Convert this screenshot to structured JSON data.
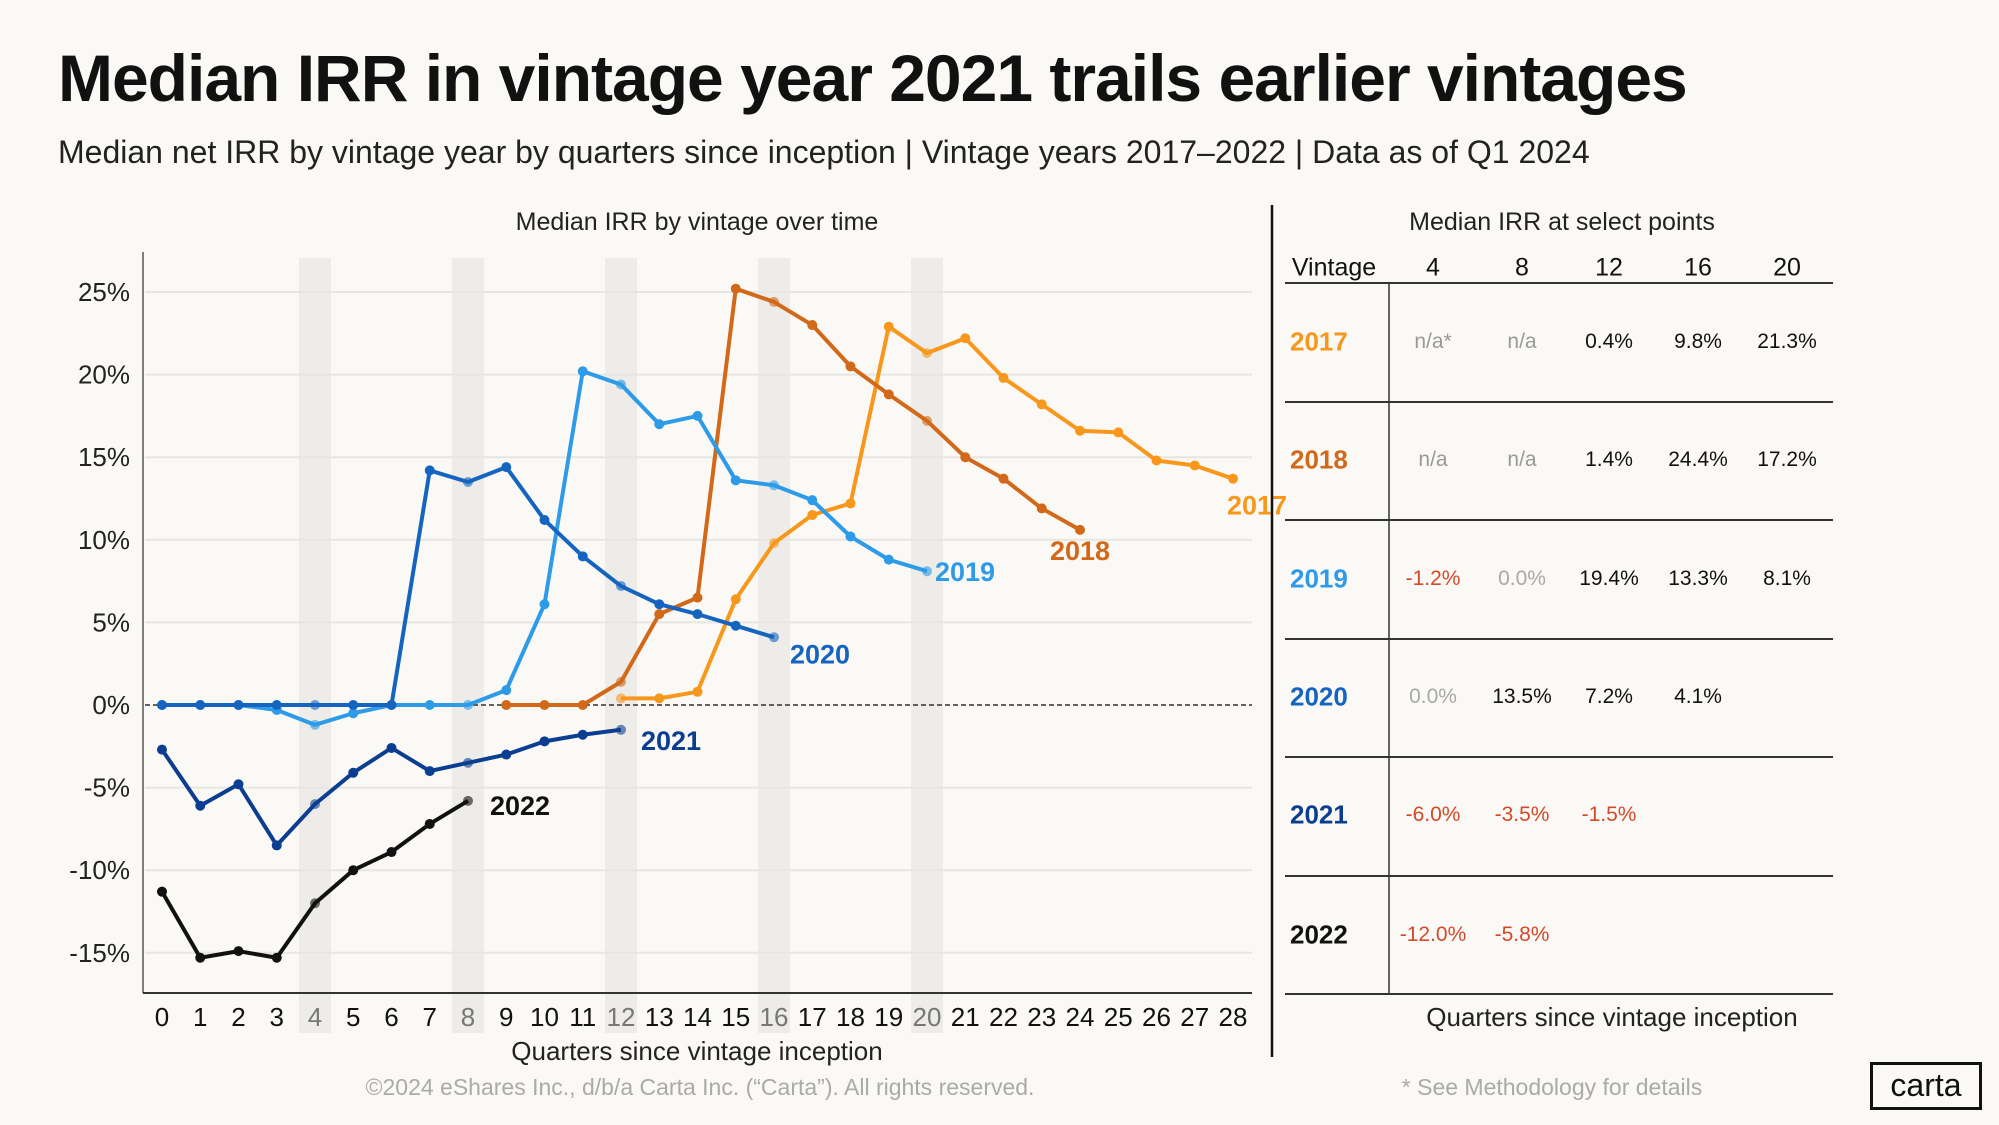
{
  "header": {
    "title": "Median IRR in vintage year 2021 trails earlier vintages",
    "subtitle": "Median net IRR by vintage year by quarters since inception  |  Vintage years 2017–2022  |  Data as of Q1 2024"
  },
  "chart_data": {
    "type": "line",
    "title": "Median IRR by vintage over time",
    "xlabel": "Quarters since vintage inception",
    "ylabel": "",
    "xlim": [
      0,
      28
    ],
    "ylim": [
      -17.5,
      27.5
    ],
    "x_ticks": [
      "0",
      "1",
      "2",
      "3",
      "4",
      "5",
      "6",
      "7",
      "8",
      "9",
      "10",
      "11",
      "12",
      "13",
      "14",
      "15",
      "16",
      "17",
      "18",
      "19",
      "20",
      "21",
      "22",
      "23",
      "24",
      "25",
      "26",
      "27",
      "28"
    ],
    "y_ticks": [
      "25%",
      "20%",
      "15%",
      "10%",
      "5%",
      "0%",
      "-5%",
      "-10%",
      "-15%"
    ],
    "y_tick_values": [
      25,
      20,
      15,
      10,
      5,
      0,
      -5,
      -10,
      -15
    ],
    "highlighted_quarters": [
      4,
      8,
      12,
      16,
      20
    ],
    "grid": "horizontal",
    "reference_line": 0,
    "series": [
      {
        "name": "2017",
        "color": "#F7981D",
        "x": [
          12,
          13,
          14,
          15,
          16,
          17,
          18,
          19,
          20,
          21,
          22,
          23,
          24,
          25,
          26,
          27,
          28
        ],
        "values": [
          0.4,
          0.4,
          0.8,
          6.4,
          9.8,
          11.5,
          12.2,
          22.9,
          21.3,
          22.2,
          19.8,
          18.2,
          16.6,
          16.5,
          14.8,
          14.5,
          13.7
        ]
      },
      {
        "name": "2018",
        "color": "#D2691A",
        "x": [
          9,
          10,
          11,
          12,
          13,
          14,
          15,
          16,
          17,
          18,
          19,
          20,
          21,
          22,
          23,
          24
        ],
        "values": [
          0,
          0,
          0,
          1.4,
          5.5,
          6.5,
          25.2,
          24.4,
          23.0,
          20.5,
          18.8,
          17.2,
          15.0,
          13.7,
          11.9,
          10.6
        ]
      },
      {
        "name": "2019",
        "color": "#2E9BE8",
        "x": [
          0,
          1,
          2,
          3,
          4,
          5,
          6,
          7,
          8,
          9,
          10,
          11,
          12,
          13,
          14,
          15,
          16,
          17,
          18,
          19,
          20
        ],
        "values": [
          0,
          0,
          0,
          -0.3,
          -1.2,
          -0.5,
          0,
          0,
          0,
          0.9,
          6.1,
          20.2,
          19.4,
          17.0,
          17.5,
          13.6,
          13.3,
          12.4,
          10.2,
          8.8,
          8.1
        ]
      },
      {
        "name": "2020",
        "color": "#1565C0",
        "x": [
          0,
          1,
          2,
          3,
          4,
          5,
          6,
          7,
          8,
          9,
          10,
          11,
          12,
          13,
          14,
          15,
          16
        ],
        "values": [
          0,
          0,
          0,
          0,
          0,
          0,
          0,
          14.2,
          13.5,
          14.4,
          11.2,
          9.0,
          7.2,
          6.1,
          5.5,
          4.8,
          4.1
        ]
      },
      {
        "name": "2021",
        "color": "#0B3D91",
        "x": [
          0,
          1,
          2,
          3,
          4,
          5,
          6,
          7,
          8,
          9,
          10,
          11,
          12
        ],
        "values": [
          -2.7,
          -6.1,
          -4.8,
          -8.5,
          -6.0,
          -4.1,
          -2.6,
          -4.0,
          -3.5,
          -3.0,
          -2.2,
          -1.8,
          -1.5
        ]
      },
      {
        "name": "2022",
        "color": "#111111",
        "x": [
          0,
          1,
          2,
          3,
          4,
          5,
          6,
          7,
          8
        ],
        "values": [
          -11.3,
          -15.3,
          -14.9,
          -15.3,
          -12.0,
          -10.0,
          -8.9,
          -7.2,
          -5.8
        ]
      }
    ]
  },
  "table": {
    "title": "Median IRR at select points",
    "header_label": "Vintage",
    "columns": [
      "4",
      "8",
      "12",
      "16",
      "20"
    ],
    "xlabel": "Quarters since vintage inception",
    "colors": {
      "negative": "#D24A2A",
      "na": "#999999",
      "zero": "#A8A8A8",
      "positive": "#111111"
    },
    "rows": [
      {
        "vintage": "2017",
        "color": "#F7981D",
        "cells": [
          "n/a*",
          "n/a",
          "0.4%",
          "9.8%",
          "21.3%"
        ],
        "kinds": [
          "na",
          "na",
          "positive",
          "positive",
          "positive"
        ]
      },
      {
        "vintage": "2018",
        "color": "#D2691A",
        "cells": [
          "n/a",
          "n/a",
          "1.4%",
          "24.4%",
          "17.2%"
        ],
        "kinds": [
          "na",
          "na",
          "positive",
          "positive",
          "positive"
        ]
      },
      {
        "vintage": "2019",
        "color": "#2E9BE8",
        "cells": [
          "-1.2%",
          "0.0%",
          "19.4%",
          "13.3%",
          "8.1%"
        ],
        "kinds": [
          "negative",
          "zero",
          "positive",
          "positive",
          "positive"
        ]
      },
      {
        "vintage": "2020",
        "color": "#1565C0",
        "cells": [
          "0.0%",
          "13.5%",
          "7.2%",
          "4.1%",
          ""
        ],
        "kinds": [
          "zero",
          "positive",
          "positive",
          "positive",
          "positive"
        ]
      },
      {
        "vintage": "2021",
        "color": "#0B3D91",
        "cells": [
          "-6.0%",
          "-3.5%",
          "-1.5%",
          "",
          ""
        ],
        "kinds": [
          "negative",
          "negative",
          "negative",
          "positive",
          "positive"
        ]
      },
      {
        "vintage": "2022",
        "color": "#111111",
        "cells": [
          "-12.0%",
          "-5.8%",
          "",
          "",
          ""
        ],
        "kinds": [
          "negative",
          "negative",
          "positive",
          "positive",
          "positive"
        ]
      }
    ]
  },
  "footer": {
    "copyright": "©2024 eShares Inc., d/b/a Carta Inc. (“Carta”). All rights reserved.",
    "footnote": "* See Methodology for details",
    "logo": "carta"
  }
}
